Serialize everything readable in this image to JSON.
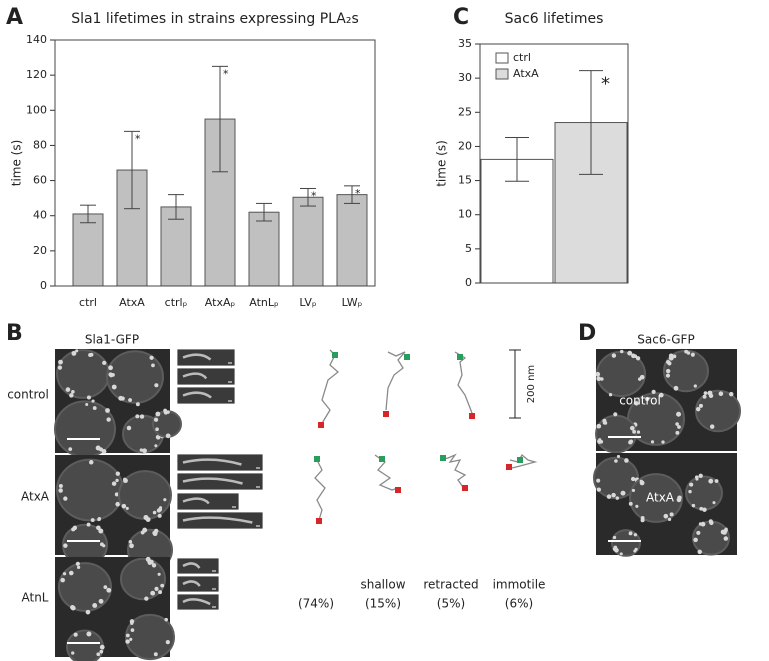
{
  "chart_data": [
    {
      "type": "bar",
      "panel_label": "A",
      "title": "Sla1 lifetimes in strains expressing PLA₂s",
      "y_label": "time (s)",
      "categories": [
        "ctrl",
        "AtxA",
        "ctrlₚ",
        "AtxAₚ",
        "AtnLₚ",
        "LVₚ",
        "LWₚ"
      ],
      "values": [
        41,
        66,
        45,
        95,
        42,
        50.5,
        52
      ],
      "errors": [
        5,
        22,
        7,
        30,
        5,
        5,
        5
      ],
      "markers": [
        null,
        "*",
        null,
        "*",
        null,
        "*",
        "*"
      ],
      "color": "#c0c0c0",
      "ylim": [
        0,
        140
      ],
      "yticks": [
        0,
        20,
        40,
        60,
        80,
        100,
        120,
        140
      ]
    },
    {
      "type": "bar",
      "panel_label": "C",
      "title": "Sac6 lifetimes",
      "y_label": "time (s)",
      "series": [
        {
          "name": "ctrl",
          "color": "#ffffff",
          "values": [
            18.1
          ],
          "errors": [
            3.2
          ]
        },
        {
          "name": "AtxA",
          "color": "#dcdcdc",
          "values": [
            23.5
          ],
          "errors": [
            7.6
          ],
          "marker": "*"
        }
      ],
      "legend": "upper left",
      "ylim": [
        0,
        35
      ],
      "yticks": [
        0,
        5,
        10,
        15,
        20,
        25,
        30,
        35
      ]
    }
  ],
  "panel_b": {
    "panel_label": "B",
    "title": "Sla1-GFP",
    "rows": [
      "control",
      "AtxA",
      "AtnL"
    ],
    "scale_label": "200 nm",
    "trajectory_classes": [
      {
        "percent": "(74%)"
      },
      {
        "name": "shallow",
        "percent": "(15%)"
      },
      {
        "name": "retracted",
        "percent": "(5%)"
      },
      {
        "name": "immotile",
        "percent": "(6%)"
      }
    ]
  },
  "panel_d": {
    "panel_label": "D",
    "title": "Sac6-GFP",
    "rows": [
      "control",
      "AtxA"
    ]
  }
}
